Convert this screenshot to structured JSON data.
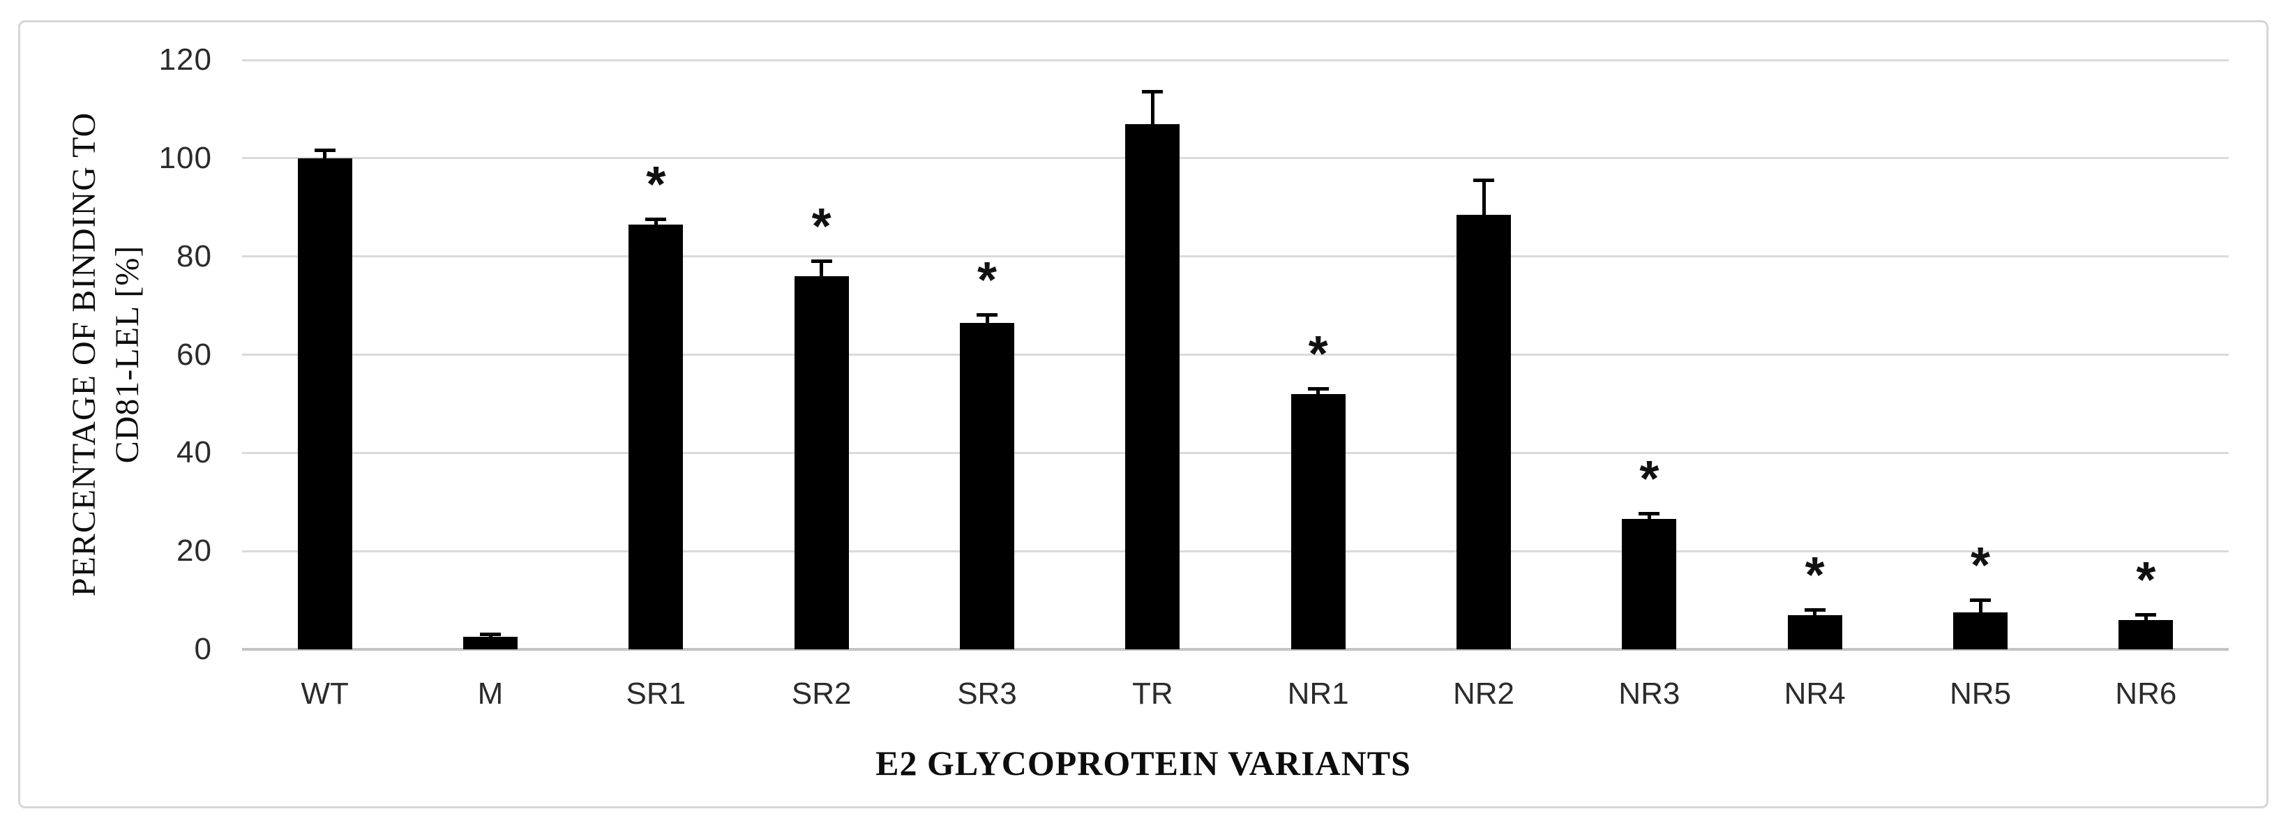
{
  "figure": {
    "background": "#ffffff",
    "border_color": "#d6d6d6"
  },
  "chart_data": {
    "type": "bar",
    "title": "",
    "xlabel": "E2 GLYCOPROTEIN VARIANTS",
    "ylabel": "PERCENTAGE OF BINDING TO CD81-LEL [%]",
    "ylabel_lines": [
      "PERCENTAGE OF BINDING TO",
      "CD81-LEL [%]"
    ],
    "categories": [
      "WT",
      "M",
      "SR1",
      "SR2",
      "SR3",
      "TR",
      "NR1",
      "NR2",
      "NR3",
      "NR4",
      "NR5",
      "NR6"
    ],
    "values": [
      100,
      2.5,
      86.5,
      76,
      66.5,
      107,
      52,
      88.5,
      26.5,
      7,
      7.5,
      6
    ],
    "error_bars": [
      1.5,
      0.5,
      1,
      3,
      1.5,
      6.5,
      1,
      7,
      1,
      1,
      2.5,
      1
    ],
    "significant": [
      false,
      false,
      true,
      true,
      true,
      false,
      true,
      false,
      true,
      true,
      true,
      true
    ],
    "significance_marker": "*",
    "yticks": [
      0,
      20,
      40,
      60,
      80,
      100,
      120
    ],
    "ylim": [
      0,
      120
    ],
    "grid": true,
    "legend": false,
    "bar_color": "#000000",
    "gridline_color": "#dadada",
    "axis_line_color": "#c4c4c4",
    "text_color": "#2b2b2b"
  }
}
